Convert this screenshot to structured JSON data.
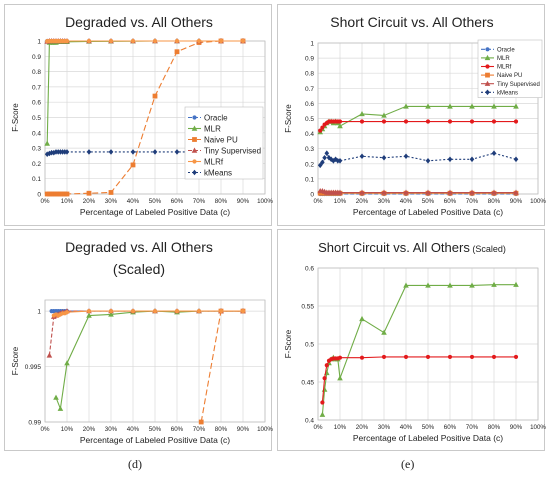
{
  "captions": [
    "(d)",
    "(e)"
  ],
  "chart_data": [
    {
      "type": "line",
      "title": "Degraded vs. All Others",
      "xlabel": "Percentage of Labeled Positive Data (c)",
      "ylabel": "F-Score",
      "xlim": [
        0,
        100
      ],
      "ylim": [
        0,
        1
      ],
      "yticks": [
        0,
        0.1,
        0.2,
        0.3,
        0.4,
        0.5,
        0.6,
        0.7,
        0.8,
        0.9,
        1
      ],
      "ytick_labels": [
        "0",
        "0.1",
        "0.2",
        "0.3",
        "0.4",
        "0.5",
        "0.6",
        "0.7",
        "0.8",
        "0.9",
        "1"
      ],
      "xticks": [
        0,
        10,
        20,
        30,
        40,
        50,
        60,
        70,
        80,
        90,
        100
      ],
      "xtick_labels": [
        "0%",
        "10%",
        "20%",
        "30%",
        "40%",
        "50%",
        "60%",
        "70%",
        "80%",
        "90%",
        "100%"
      ],
      "grid": true,
      "legend": "center-right",
      "series": [
        {
          "name": "Oracle",
          "color": "#4472c4",
          "dash": "4,2",
          "marker": "circle",
          "x": [
            1,
            2,
            3,
            4,
            5,
            6,
            7,
            8,
            9,
            10,
            20,
            30,
            40,
            50,
            60,
            70,
            80,
            90
          ],
          "y": [
            1,
            1,
            1,
            1,
            1,
            1,
            1,
            1,
            1,
            1,
            1,
            1,
            1,
            1,
            1,
            1,
            1,
            1
          ]
        },
        {
          "name": "MLR",
          "color": "#70ad47",
          "dash": "",
          "marker": "triangle",
          "x": [
            1,
            2,
            3,
            4,
            5,
            6,
            7,
            8,
            9,
            10,
            20,
            30,
            40,
            50,
            60,
            70,
            80,
            90
          ],
          "y": [
            0.33,
            0.99,
            0.99,
            0.99,
            0.99,
            0.995,
            0.995,
            0.995,
            0.995,
            0.995,
            0.997,
            0.998,
            0.999,
            1,
            1,
            1,
            1,
            1
          ]
        },
        {
          "name": "Naive PU",
          "color": "#ed7d31",
          "dash": "6,3",
          "marker": "square",
          "x": [
            1,
            2,
            3,
            4,
            5,
            6,
            7,
            8,
            9,
            10,
            20,
            30,
            40,
            50,
            60,
            70,
            80,
            90
          ],
          "y": [
            0,
            0,
            0,
            0,
            0,
            0,
            0,
            0,
            0,
            0,
            0.005,
            0.01,
            0.19,
            0.64,
            0.93,
            0.99,
            1,
            1
          ]
        },
        {
          "name": "Tiny Supervised",
          "color": "#c0504d",
          "dash": "4,2",
          "marker": "triangle",
          "x": [
            1,
            2,
            3,
            4,
            5,
            6,
            7,
            8,
            9,
            10,
            20,
            30,
            40,
            50,
            60,
            70,
            80,
            90
          ],
          "y": [
            0.996,
            1,
            1,
            1,
            1,
            1,
            1,
            1,
            1,
            1,
            1,
            1,
            1,
            1,
            1,
            1,
            1,
            1
          ]
        },
        {
          "name": "MLRf",
          "color": "#f79646",
          "dash": "",
          "marker": "circle",
          "x": [
            1,
            2,
            3,
            4,
            5,
            6,
            7,
            8,
            9,
            10,
            20,
            30,
            40,
            50,
            60,
            70,
            80,
            90
          ],
          "y": [
            0.999,
            1,
            1,
            1,
            1,
            1,
            1,
            1,
            1,
            1,
            1,
            1,
            1,
            1,
            1,
            1,
            1,
            1
          ]
        },
        {
          "name": "kMeans",
          "color": "#1f3d7a",
          "dash": "2,2",
          "marker": "diamond",
          "x": [
            1,
            2,
            3,
            4,
            5,
            6,
            7,
            8,
            9,
            10,
            20,
            30,
            40,
            50,
            60,
            70,
            80,
            90
          ],
          "y": [
            0.26,
            0.265,
            0.27,
            0.27,
            0.275,
            0.275,
            0.275,
            0.275,
            0.275,
            0.275,
            0.275,
            0.275,
            0.275,
            0.275,
            0.275,
            0.275,
            0.275,
            0.275
          ]
        }
      ]
    },
    {
      "type": "line",
      "title": "Short Circuit vs. All Others",
      "xlabel": "Percentage of Labeled Positive Data (c)",
      "ylabel": "F-Score",
      "xlim": [
        0,
        100
      ],
      "ylim": [
        0,
        1
      ],
      "yticks": [
        0,
        0.1,
        0.2,
        0.3,
        0.4,
        0.5,
        0.6,
        0.7,
        0.8,
        0.9,
        1
      ],
      "ytick_labels": [
        "0",
        "0.1",
        "0.2",
        "0.3",
        "0.4",
        "0.5",
        "0.6",
        "0.7",
        "0.8",
        "0.9",
        "1"
      ],
      "xticks": [
        0,
        10,
        20,
        30,
        40,
        50,
        60,
        70,
        80,
        90,
        100
      ],
      "xtick_labels": [
        "0%",
        "10%",
        "20%",
        "30%",
        "40%",
        "50%",
        "60%",
        "70%",
        "80%",
        "90%",
        "100%"
      ],
      "grid": true,
      "legend": "top-right",
      "series": [
        {
          "name": "Oracle",
          "color": "#4472c4",
          "dash": "4,2",
          "marker": "circle",
          "x": [
            1,
            2,
            3,
            4,
            5,
            6,
            7,
            8,
            9,
            10,
            20,
            30,
            40,
            50,
            60,
            70,
            80,
            90
          ],
          "y": [
            0,
            0,
            0,
            0,
            0,
            0,
            0,
            0,
            0,
            0,
            0,
            0,
            0,
            0,
            0,
            0,
            0,
            0
          ]
        },
        {
          "name": "MLR",
          "color": "#70ad47",
          "dash": "",
          "marker": "triangle",
          "x": [
            1,
            2,
            3,
            4,
            5,
            6,
            7,
            8,
            9,
            10,
            20,
            30,
            40,
            50,
            60,
            70,
            80,
            90
          ],
          "y": [
            0.41,
            0.43,
            0.45,
            0.47,
            0.48,
            0.48,
            0.47,
            0.48,
            0.47,
            0.45,
            0.53,
            0.52,
            0.58,
            0.58,
            0.58,
            0.58,
            0.58,
            0.58
          ]
        },
        {
          "name": "MLRf",
          "color": "#e31a1c",
          "dash": "",
          "marker": "circle",
          "x": [
            1,
            2,
            3,
            4,
            5,
            6,
            7,
            8,
            9,
            10,
            20,
            30,
            40,
            50,
            60,
            70,
            80,
            90
          ],
          "y": [
            0.42,
            0.44,
            0.46,
            0.47,
            0.48,
            0.48,
            0.48,
            0.48,
            0.48,
            0.48,
            0.48,
            0.48,
            0.48,
            0.48,
            0.48,
            0.48,
            0.48,
            0.48
          ]
        },
        {
          "name": "Naive PU",
          "color": "#ed7d31",
          "dash": "",
          "marker": "square",
          "x": [
            1,
            2,
            3,
            4,
            5,
            6,
            7,
            8,
            9,
            10,
            20,
            30,
            40,
            50,
            60,
            70,
            80,
            90
          ],
          "y": [
            0.005,
            0.005,
            0.005,
            0.005,
            0.005,
            0.005,
            0.005,
            0.005,
            0.005,
            0.005,
            0.005,
            0.005,
            0.005,
            0.005,
            0.005,
            0.005,
            0.005,
            0.005
          ]
        },
        {
          "name": "Tiny Supervised",
          "color": "#c0504d",
          "dash": "",
          "marker": "triangle",
          "x": [
            1,
            2,
            3,
            4,
            5,
            6,
            7,
            8,
            9,
            10,
            20,
            30,
            40,
            50,
            60,
            70,
            80,
            90
          ],
          "y": [
            0.02,
            0.02,
            0.015,
            0.01,
            0.01,
            0.01,
            0.01,
            0.01,
            0.01,
            0.01,
            0.01,
            0.01,
            0.01,
            0.01,
            0.01,
            0.01,
            0.01,
            0.01
          ]
        },
        {
          "name": "kMeans",
          "color": "#1f3d7a",
          "dash": "2,2",
          "marker": "diamond",
          "x": [
            1,
            2,
            3,
            4,
            5,
            6,
            7,
            8,
            9,
            10,
            20,
            30,
            40,
            50,
            60,
            70,
            80,
            90
          ],
          "y": [
            0.19,
            0.21,
            0.24,
            0.27,
            0.24,
            0.23,
            0.22,
            0.23,
            0.22,
            0.22,
            0.25,
            0.24,
            0.25,
            0.22,
            0.23,
            0.23,
            0.27,
            0.23
          ]
        }
      ]
    },
    {
      "type": "line",
      "title": "Degraded vs. All Others",
      "subtitle": "(Scaled)",
      "xlabel": "Percentage of Labeled Positive Data (c)",
      "ylabel": "F-Score",
      "xlim": [
        0,
        100
      ],
      "ylim": [
        0.99,
        1.001
      ],
      "yticks": [
        0.99,
        0.995,
        1
      ],
      "ytick_labels": [
        "0.99",
        "0.995",
        "1"
      ],
      "xticks": [
        0,
        10,
        20,
        30,
        40,
        50,
        60,
        70,
        80,
        90,
        100
      ],
      "xtick_labels": [
        "0%",
        "10%",
        "20%",
        "30%",
        "40%",
        "50%",
        "60%",
        "70%",
        "80%",
        "90%",
        "100%"
      ],
      "grid": true,
      "series": [
        {
          "name": "Oracle",
          "color": "#4472c4",
          "dash": "4,2",
          "marker": "circle",
          "x": [
            3,
            4,
            5,
            6,
            7,
            8,
            9,
            10,
            20,
            30,
            40,
            50,
            60,
            70,
            80,
            90
          ],
          "y": [
            1,
            1,
            1,
            1,
            1,
            1,
            1,
            1,
            1,
            1,
            1,
            1,
            1,
            1,
            1,
            1
          ]
        },
        {
          "name": "MLR",
          "color": "#70ad47",
          "dash": "",
          "marker": "triangle",
          "x": [
            5,
            7,
            10,
            20,
            30,
            40,
            50,
            60,
            70,
            80,
            90
          ],
          "y": [
            0.9922,
            0.9912,
            0.9953,
            0.9996,
            0.9997,
            0.9999,
            1,
            0.9999,
            1,
            1,
            1
          ]
        },
        {
          "name": "Naive PU",
          "color": "#ed7d31",
          "dash": "6,3",
          "marker": "square",
          "x": [
            71,
            80,
            90
          ],
          "y": [
            0.99,
            1,
            1
          ]
        },
        {
          "name": "Tiny Supervised",
          "color": "#c0504d",
          "dash": "4,2",
          "marker": "triangle",
          "x": [
            2,
            4,
            5,
            6,
            7,
            8,
            9,
            10,
            20,
            30,
            40,
            50,
            60,
            70,
            80,
            90
          ],
          "y": [
            0.996,
            0.9995,
            0.9996,
            0.9997,
            0.9998,
            0.9999,
            0.9999,
            1,
            1,
            1,
            1,
            1,
            1,
            1,
            1,
            1
          ]
        },
        {
          "name": "MLRf",
          "color": "#f79646",
          "dash": "",
          "marker": "circle",
          "x": [
            4,
            5,
            6,
            7,
            8,
            9,
            10,
            20,
            30,
            40,
            50,
            60,
            70,
            80,
            90
          ],
          "y": [
            0.9996,
            0.9997,
            0.9996,
            0.9997,
            0.9998,
            0.9998,
            0.9999,
            1,
            1,
            1,
            1,
            1,
            1,
            1,
            1
          ]
        }
      ]
    },
    {
      "type": "line",
      "title": "Short Circuit vs. All Others",
      "title_suffix": "(Scaled)",
      "xlabel": "Percentage of Labeled Positive Data (c)",
      "ylabel": "F-Score",
      "xlim": [
        0,
        100
      ],
      "ylim": [
        0.4,
        0.6
      ],
      "yticks": [
        0.4,
        0.45,
        0.5,
        0.55,
        0.6
      ],
      "ytick_labels": [
        "0.4",
        "0.45",
        "0.5",
        "0.55",
        "0.6"
      ],
      "xticks": [
        0,
        10,
        20,
        30,
        40,
        50,
        60,
        70,
        80,
        90,
        100
      ],
      "xtick_labels": [
        "0%",
        "10%",
        "20%",
        "30%",
        "40%",
        "50%",
        "60%",
        "70%",
        "80%",
        "90%",
        "100%"
      ],
      "grid": true,
      "series": [
        {
          "name": "MLR",
          "color": "#70ad47",
          "dash": "",
          "marker": "triangle",
          "x": [
            2,
            3,
            4,
            5,
            6,
            7,
            8,
            9,
            10,
            20,
            30,
            40,
            50,
            60,
            70,
            80,
            90
          ],
          "y": [
            0.407,
            0.44,
            0.462,
            0.475,
            0.48,
            0.482,
            0.48,
            0.48,
            0.455,
            0.533,
            0.515,
            0.577,
            0.577,
            0.577,
            0.577,
            0.578,
            0.578
          ]
        },
        {
          "name": "MLRf",
          "color": "#e31a1c",
          "dash": "",
          "marker": "circle",
          "x": [
            2,
            3,
            4,
            5,
            6,
            7,
            8,
            9,
            10,
            20,
            30,
            40,
            50,
            60,
            70,
            80,
            90
          ],
          "y": [
            0.423,
            0.455,
            0.472,
            0.478,
            0.48,
            0.481,
            0.481,
            0.481,
            0.482,
            0.482,
            0.483,
            0.483,
            0.483,
            0.483,
            0.483,
            0.483,
            0.483
          ]
        }
      ]
    }
  ]
}
